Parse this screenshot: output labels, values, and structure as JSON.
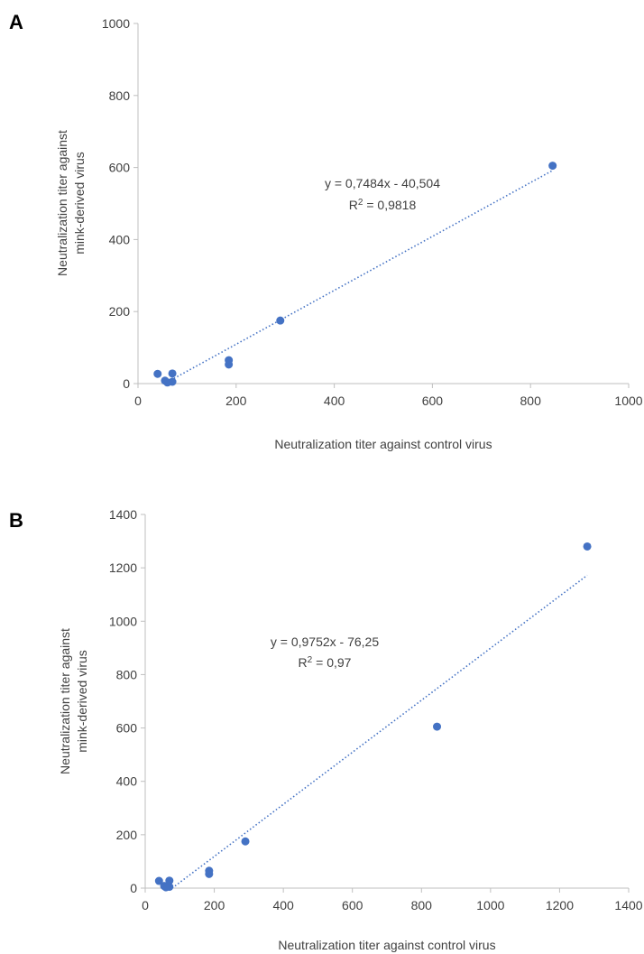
{
  "chart_data": [
    {
      "panel_label": "A",
      "type": "scatter",
      "xlabel": "Neutralization titer against control virus",
      "ylabel": [
        "Neutralization titer against",
        "mink-derived virus"
      ],
      "xlim": [
        0,
        1000
      ],
      "ylim": [
        0,
        1000
      ],
      "xticks": [
        0,
        200,
        400,
        600,
        800,
        1000
      ],
      "yticks": [
        0,
        200,
        400,
        600,
        800,
        1000
      ],
      "points": [
        {
          "x": 40,
          "y": 27
        },
        {
          "x": 55,
          "y": 8
        },
        {
          "x": 60,
          "y": 3
        },
        {
          "x": 70,
          "y": 28
        },
        {
          "x": 70,
          "y": 5
        },
        {
          "x": 185,
          "y": 65
        },
        {
          "x": 185,
          "y": 53
        },
        {
          "x": 290,
          "y": 175
        },
        {
          "x": 845,
          "y": 605
        }
      ],
      "trendline": {
        "slope": 0.7484,
        "intercept": -40.504,
        "x_range": [
          54,
          845
        ]
      },
      "equation": "y = 0,7484x - 40,504",
      "r_squared": "R² = 0,9818",
      "grid": false,
      "colors": {
        "points": "#4472c4",
        "trendline": "#4472c4"
      }
    },
    {
      "panel_label": "B",
      "type": "scatter",
      "xlabel": "Neutralization titer against control virus",
      "ylabel": [
        "Neutralization titer against",
        "mink-derived virus"
      ],
      "xlim": [
        0,
        1400
      ],
      "ylim": [
        0,
        1400
      ],
      "xticks": [
        0,
        200,
        400,
        600,
        800,
        1000,
        1200,
        1400
      ],
      "yticks": [
        0,
        200,
        400,
        600,
        800,
        1000,
        1200,
        1400
      ],
      "points": [
        {
          "x": 40,
          "y": 27
        },
        {
          "x": 55,
          "y": 8
        },
        {
          "x": 60,
          "y": 3
        },
        {
          "x": 70,
          "y": 28
        },
        {
          "x": 70,
          "y": 5
        },
        {
          "x": 185,
          "y": 65
        },
        {
          "x": 185,
          "y": 53
        },
        {
          "x": 290,
          "y": 175
        },
        {
          "x": 845,
          "y": 605
        },
        {
          "x": 1280,
          "y": 1280
        }
      ],
      "trendline": {
        "slope": 0.9752,
        "intercept": -76.25,
        "x_range": [
          78,
          1280
        ]
      },
      "equation": "y = 0,9752x - 76,25",
      "r_squared": "R² = 0,97",
      "grid": false,
      "colors": {
        "points": "#4472c4",
        "trendline": "#4472c4"
      }
    }
  ]
}
